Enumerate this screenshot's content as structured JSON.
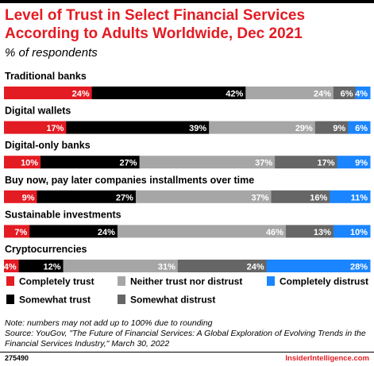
{
  "title": "Level of Trust in Select Financial Services According to Adults Worldwide, Dec 2021",
  "subtitle": "% of respondents",
  "notes": {
    "note": "Note: numbers may not add up to 100% due to rounding",
    "source": "Source: YouGov, \"The Future of Financial Services: A Global Exploration of Evolving Trends in the Financial Services Industry,\" March 30, 2022"
  },
  "footer": {
    "chart_id": "275490",
    "brand": "InsiderIntelligence.com"
  },
  "colors": {
    "completely_trust": "#e31b23",
    "somewhat_trust": "#000000",
    "neither": "#a6a6a6",
    "somewhat_distrust": "#666666",
    "completely_distrust": "#1a85ff",
    "title": "#e31b23"
  },
  "chart_data": {
    "type": "bar",
    "orientation": "horizontal",
    "stacked": true,
    "categories": [
      "Traditional banks",
      "Digital wallets",
      "Digital-only banks",
      "Buy now, pay later companies installments over time",
      "Sustainable investments",
      "Cryptocurrencies"
    ],
    "series": [
      {
        "name": "Completely trust",
        "values": [
          24,
          17,
          10,
          9,
          7,
          4
        ]
      },
      {
        "name": "Somewhat trust",
        "values": [
          42,
          39,
          27,
          27,
          24,
          12
        ]
      },
      {
        "name": "Neither trust nor distrust",
        "values": [
          24,
          29,
          37,
          37,
          46,
          31
        ]
      },
      {
        "name": "Somewhat distrust",
        "values": [
          6,
          9,
          17,
          16,
          13,
          24
        ]
      },
      {
        "name": "Completely distrust",
        "values": [
          4,
          6,
          9,
          11,
          10,
          28
        ]
      }
    ],
    "data_label_suffix": "%",
    "legend": {
      "position": "bottom",
      "order": [
        "Completely trust",
        "Neither trust nor distrust",
        "Completely distrust",
        "Somewhat trust",
        "Somewhat distrust"
      ]
    },
    "grid": false
  }
}
